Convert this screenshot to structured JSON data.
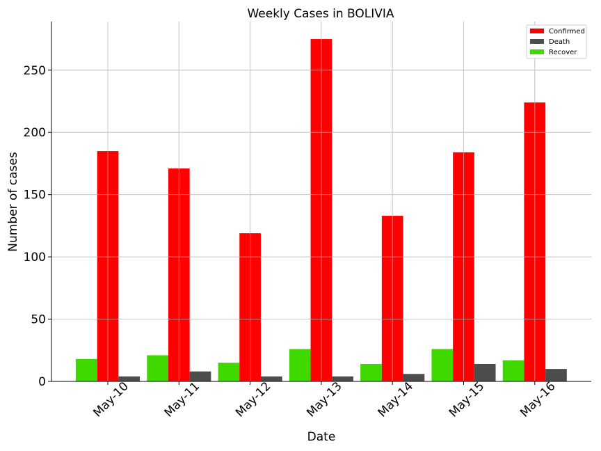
{
  "chart_data": {
    "type": "bar",
    "title": "Weekly Cases in BOLIVIA",
    "xlabel": "Date",
    "ylabel": "Number of cases",
    "categories": [
      "May-10",
      "May-11",
      "May-12",
      "May-13",
      "May-14",
      "May-15",
      "May-16"
    ],
    "series": [
      {
        "name": "Recover",
        "color": "#3fd900",
        "values": [
          18,
          21,
          15,
          26,
          14,
          26,
          17
        ]
      },
      {
        "name": "Confirmed",
        "color": "#ff0000",
        "values": [
          185,
          171,
          119,
          275,
          133,
          184,
          224
        ]
      },
      {
        "name": "Death",
        "color": "#4d4d4d",
        "values": [
          4,
          8,
          4,
          4,
          6,
          14,
          10
        ]
      }
    ],
    "legend_order": [
      "Confirmed",
      "Death",
      "Recover"
    ],
    "yticks": [
      0,
      50,
      100,
      150,
      200,
      250
    ],
    "ylim": [
      0,
      289
    ],
    "grid": true,
    "legend_position": "top-right"
  }
}
